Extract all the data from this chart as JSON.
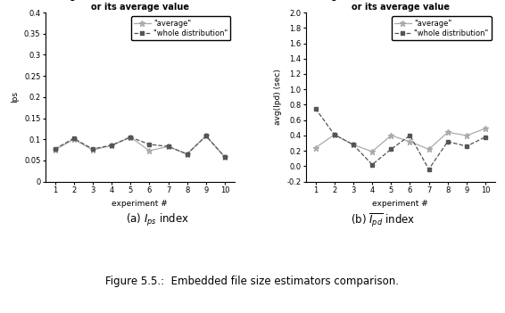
{
  "x": [
    1,
    2,
    3,
    4,
    5,
    6,
    7,
    8,
    9,
    10
  ],
  "lps_average": [
    0.075,
    0.1,
    0.075,
    0.085,
    0.105,
    0.073,
    0.083,
    0.065,
    0.108,
    0.058
  ],
  "lps_whole": [
    0.077,
    0.102,
    0.077,
    0.086,
    0.105,
    0.088,
    0.083,
    0.065,
    0.108,
    0.058
  ],
  "lpd_average": [
    0.24,
    0.41,
    0.28,
    0.19,
    0.4,
    0.32,
    0.22,
    0.44,
    0.4,
    0.49
  ],
  "lpd_whole": [
    0.75,
    0.41,
    0.28,
    0.02,
    0.22,
    0.4,
    -0.04,
    0.32,
    0.26,
    0.38
  ],
  "title1": "Global strategy lps\nusing the whole file size distribution\nor its average value",
  "title2": "Global strategy average lpd\nusing the whole file size distribution\nor its average value",
  "ylabel1": "lps",
  "ylabel2": "avg(lpd) (sec)",
  "xlabel": "experiment #",
  "ylim1": [
    0,
    0.4
  ],
  "ylim2": [
    -0.2,
    2.0
  ],
  "yticks1": [
    0,
    0.05,
    0.1,
    0.15,
    0.2,
    0.25,
    0.3,
    0.35,
    0.4
  ],
  "yticks2": [
    -0.2,
    0.0,
    0.2,
    0.4,
    0.6,
    0.8,
    1.0,
    1.2,
    1.4,
    1.6,
    1.8,
    2.0
  ],
  "legend_average": "\"average\"",
  "legend_whole": "\"whole distribution\"",
  "color_average": "#aaaaaa",
  "color_whole": "#555555",
  "caption_a": "(a) $I_{ps}$ index",
  "caption_b": "(b) $\\overline{I_{pd}}$ index",
  "figure_caption": "Figure 5.5.:  Embedded file size estimators comparison.",
  "title_fontsize": 7.0,
  "label_fontsize": 6.5,
  "tick_fontsize": 6.0,
  "legend_fontsize": 6.0,
  "caption_fontsize": 8.5,
  "fig_caption_fontsize": 8.5
}
